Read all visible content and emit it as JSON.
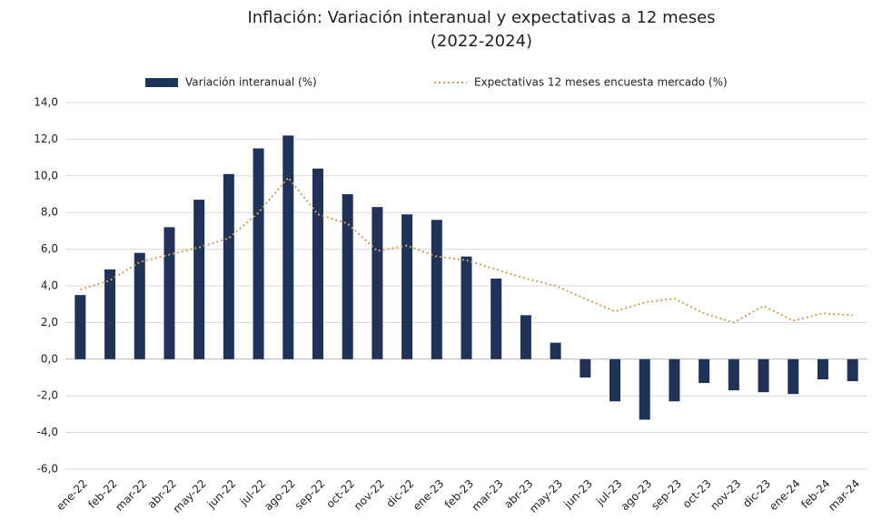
{
  "chart_data": {
    "type": "bar",
    "title": "Inflación: Variación interanual y expectativas a 12 meses",
    "subtitle": "(2022-2024)",
    "categories": [
      "ene-22",
      "feb-22",
      "mar-22",
      "abr-22",
      "may-22",
      "jun-22",
      "jul-22",
      "ago-22",
      "sep-22",
      "oct-22",
      "nov-22",
      "dic-22",
      "ene-23",
      "feb-23",
      "mar-23",
      "abr-23",
      "may-23",
      "jun-23",
      "jul-23",
      "ago-23",
      "sep-23",
      "oct-23",
      "nov-23",
      "dic-23",
      "ene-24",
      "feb-24",
      "mar-24"
    ],
    "series": [
      {
        "name": "Variación interanual (%)",
        "type": "bar",
        "color": "#1f3358",
        "values": [
          3.5,
          4.9,
          5.8,
          7.2,
          8.7,
          10.1,
          11.5,
          12.2,
          10.4,
          9.0,
          8.3,
          7.9,
          7.6,
          5.6,
          4.4,
          2.4,
          0.9,
          -1.0,
          -2.3,
          -3.3,
          -2.3,
          -1.3,
          -1.7,
          -1.8,
          -1.9,
          -1.1,
          -1.2
        ]
      },
      {
        "name": "Expectativas 12 meses  encuesta mercado (%)",
        "type": "line",
        "color": "#c9a25a",
        "values": [
          3.8,
          4.3,
          5.3,
          5.7,
          6.1,
          6.6,
          8.0,
          9.9,
          7.9,
          7.4,
          5.9,
          6.2,
          5.6,
          5.4,
          4.9,
          4.4,
          4.0,
          3.3,
          2.6,
          3.1,
          3.3,
          2.5,
          2.0,
          2.9,
          2.1,
          2.5,
          2.4
        ]
      }
    ],
    "ylim": [
      -6,
      14
    ],
    "yticks": [
      {
        "value": -6,
        "label": "-6,0"
      },
      {
        "value": -4,
        "label": "-4,0"
      },
      {
        "value": -2,
        "label": "-2,0"
      },
      {
        "value": 0,
        "label": "0,0"
      },
      {
        "value": 2,
        "label": "2,0"
      },
      {
        "value": 4,
        "label": "4,0"
      },
      {
        "value": 6,
        "label": "6,0"
      },
      {
        "value": 8,
        "label": "8,0"
      },
      {
        "value": 10,
        "label": "10,0"
      },
      {
        "value": 12,
        "label": "12,0"
      },
      {
        "value": 14,
        "label": "14,0"
      }
    ],
    "grid": true,
    "legend": "top"
  }
}
